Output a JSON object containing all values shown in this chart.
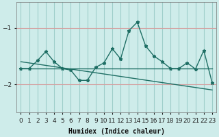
{
  "xlabel": "Humidex (Indice chaleur)",
  "x": [
    0,
    1,
    2,
    3,
    4,
    5,
    6,
    7,
    8,
    9,
    10,
    11,
    12,
    13,
    14,
    15,
    16,
    17,
    18,
    19,
    20,
    21,
    22,
    23
  ],
  "line1": [
    -1.72,
    -1.72,
    -1.58,
    -1.42,
    -1.6,
    -1.72,
    -1.75,
    -1.93,
    -1.93,
    -1.7,
    -1.62,
    -1.37,
    -1.55,
    -1.05,
    -0.9,
    -1.32,
    -1.5,
    -1.6,
    -1.72,
    -1.72,
    -1.62,
    -1.73,
    -1.4,
    -1.97
  ],
  "line2_x": [
    0,
    23
  ],
  "line2_y": [
    -1.72,
    -1.72
  ],
  "line3_x": [
    0,
    23
  ],
  "line3_y": [
    -1.6,
    -2.1
  ],
  "bg_color": "#ceecea",
  "line_color": "#1e6e64",
  "hgrid_color": "#d4a0a0",
  "vgrid_color": "#9ececa",
  "ylim": [
    -2.5,
    -0.55
  ],
  "yticks": [
    -2,
    -1
  ],
  "xlim": [
    -0.5,
    23.5
  ],
  "xticks": [
    0,
    1,
    2,
    3,
    4,
    5,
    6,
    7,
    8,
    9,
    10,
    11,
    12,
    13,
    14,
    15,
    16,
    17,
    18,
    19,
    20,
    21,
    22,
    23
  ],
  "xlabel_fontsize": 7,
  "tick_fontsize": 6.5,
  "xlabel_fontfamily": "monospace"
}
